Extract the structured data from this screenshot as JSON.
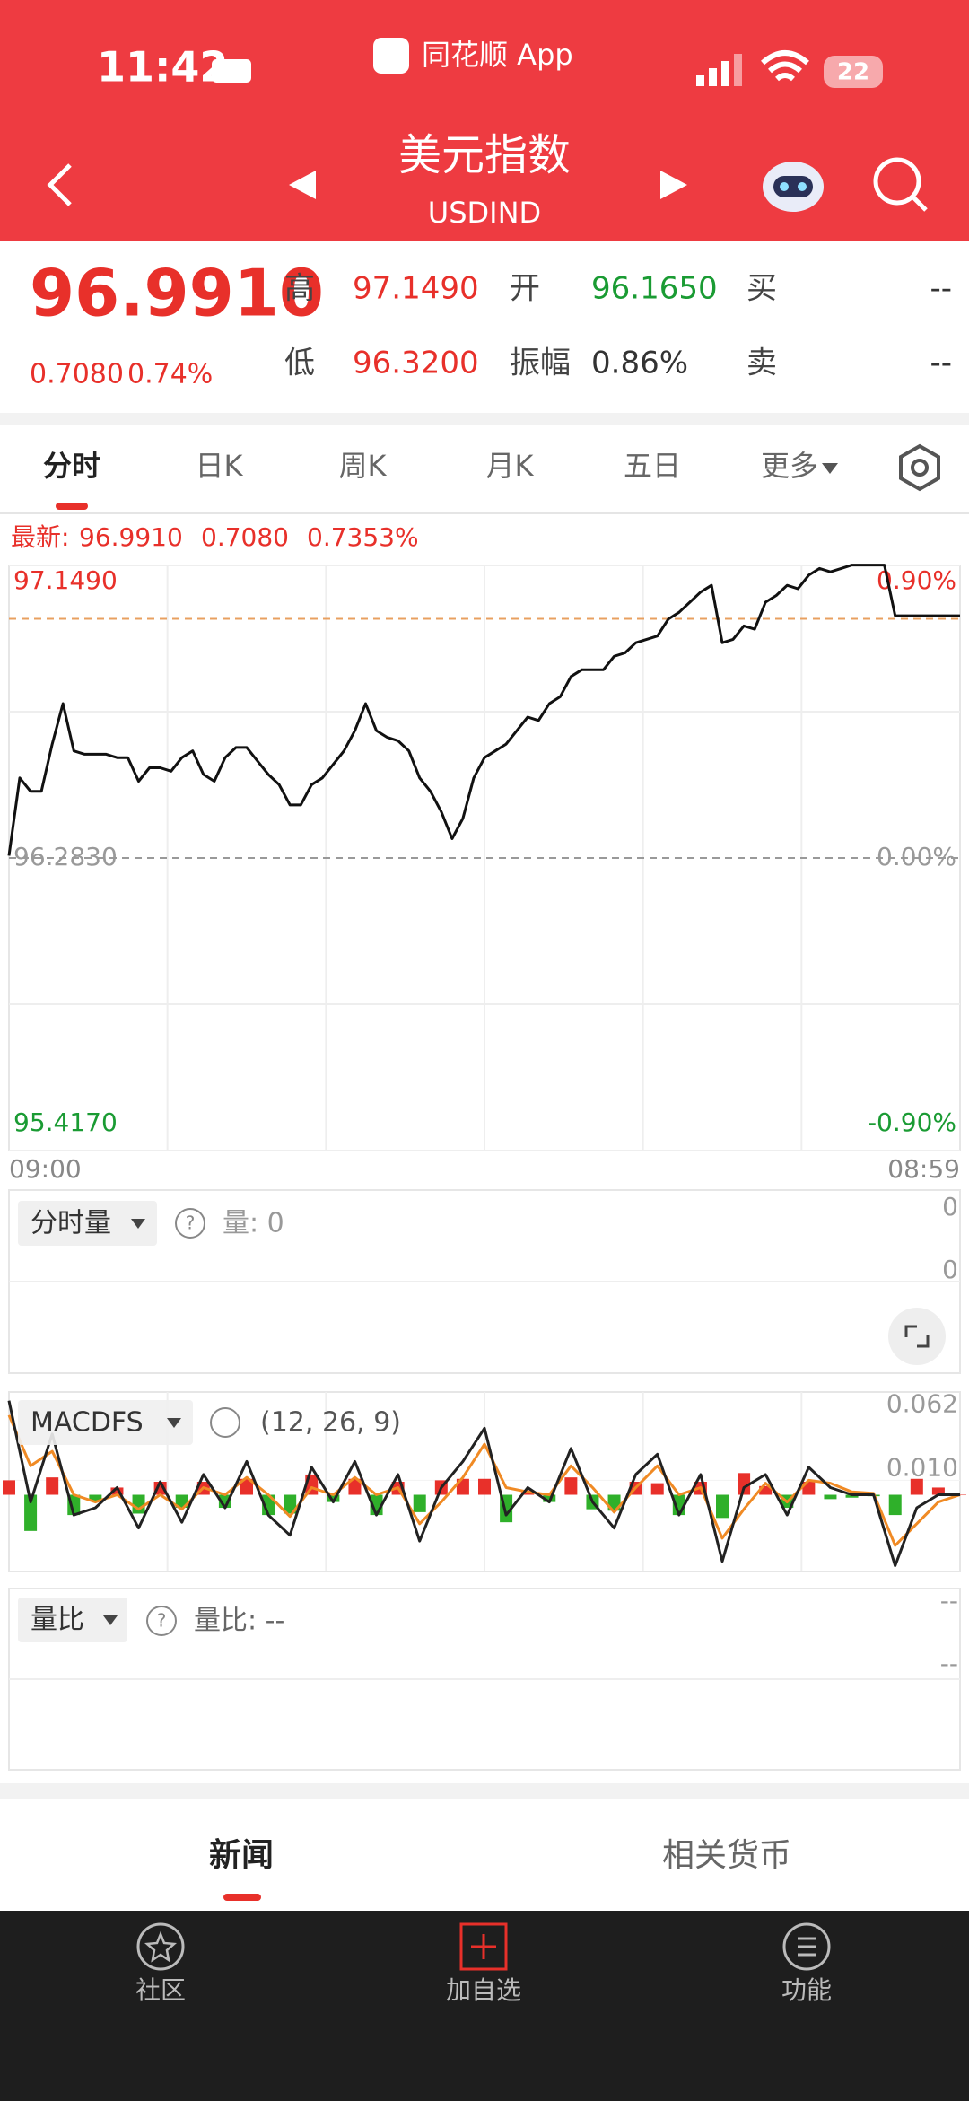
{
  "status_bar": {
    "time": "11:42",
    "app": "同花顺 App",
    "battery": "22"
  },
  "header": {
    "title": "美元指数",
    "code": "USDIND"
  },
  "quote": {
    "price": "96.9910",
    "change": "0.7080",
    "change_pct": "0.74%",
    "fields": [
      {
        "label": "高",
        "value": "97.1490"
      },
      {
        "label": "开",
        "value": "96.1650"
      },
      {
        "label": "买",
        "value": "--"
      },
      {
        "label": "低",
        "value": "96.3200"
      },
      {
        "label": "振幅",
        "value": "0.86%"
      },
      {
        "label": "卖",
        "value": "--"
      }
    ]
  },
  "tabs": [
    "分时",
    "日K",
    "周K",
    "月K",
    "五日",
    "更多"
  ],
  "chart_data": [
    {
      "type": "line",
      "info_label": "最新:",
      "latest": {
        "value": 96.991,
        "label": "96.9910"
      },
      "info_change": "0.7080",
      "info_change_pct": "0.7353%",
      "color": "#111111",
      "latest_color": "#e8a060",
      "grid": true,
      "values": [
        96.29,
        96.52,
        96.48,
        96.48,
        96.62,
        96.74,
        96.6,
        96.59,
        96.59,
        96.59,
        96.58,
        96.58,
        96.51,
        96.55,
        96.55,
        96.54,
        96.58,
        96.6,
        96.53,
        96.51,
        96.58,
        96.61,
        96.61,
        96.57,
        96.53,
        96.5,
        96.44,
        96.44,
        96.5,
        96.52,
        96.56,
        96.6,
        96.66,
        96.74,
        96.66,
        96.64,
        96.63,
        96.6,
        96.52,
        96.48,
        96.42,
        96.34,
        96.4,
        96.52,
        96.58,
        96.6,
        96.62,
        96.66,
        96.7,
        96.69,
        96.74,
        96.76,
        96.82,
        96.84,
        96.84,
        96.84,
        96.88,
        96.89,
        96.92,
        96.93,
        96.94,
        96.99,
        97.01,
        97.04,
        97.07,
        97.09,
        96.92,
        96.93,
        96.97,
        96.96,
        97.04,
        97.06,
        97.09,
        97.08,
        97.12,
        97.14,
        97.13,
        97.14,
        97.15,
        97.15,
        97.15,
        97.15,
        97.0,
        97.0,
        97.0,
        97.0,
        97.0,
        97.0,
        97.0
      ],
      "xlim": [
        0,
        88
      ],
      "xticks": [
        {
          "value": 0,
          "label": "09:00"
        },
        {
          "value": 88,
          "label": "08:59"
        }
      ],
      "ylim": [
        95.417,
        97.149
      ],
      "yticks": [
        {
          "value": 97.149,
          "label": "97.1490"
        },
        {
          "value": 96.283,
          "label": "96.2830"
        },
        {
          "value": 95.417,
          "label": "95.4170"
        }
      ],
      "y2lim": [
        -0.9,
        0.9
      ],
      "y2ticks": [
        {
          "value": 0.9,
          "label": "0.90%"
        },
        {
          "value": 0,
          "label": "0.00%"
        },
        {
          "value": -0.9,
          "label": "-0.90%"
        }
      ]
    },
    {
      "type": "macd",
      "title": "MACDFS",
      "params": "(12, 26, 9)",
      "dif": {
        "color": "#222222",
        "values": [
          0.065,
          -0.005,
          0.042,
          -0.014,
          -0.009,
          0.005,
          -0.023,
          0.009,
          -0.019,
          0.014,
          -0.009,
          0.023,
          -0.014,
          -0.028,
          0.019,
          -0.005,
          0.023,
          -0.014,
          0.014,
          -0.032,
          0.005,
          0.023,
          0.046,
          -0.014,
          0.005,
          -0.005,
          0.032,
          -0.005,
          -0.023,
          0.014,
          0.028,
          -0.014,
          0.014,
          -0.046,
          0.005,
          0.014,
          -0.014,
          0.019,
          0.005,
          0,
          0,
          -0.049,
          -0.009,
          0,
          0
        ]
      },
      "dea": {
        "color": "#f08a24",
        "values": [
          0.055,
          0.02,
          0.03,
          0,
          -0.005,
          0,
          -0.01,
          0,
          -0.01,
          0.005,
          0,
          0.012,
          0,
          -0.015,
          0.005,
          0,
          0.012,
          0,
          0.005,
          -0.02,
          -0.005,
          0.012,
          0.035,
          0.005,
          0.002,
          0,
          0.02,
          0.005,
          -0.012,
          0.005,
          0.02,
          0,
          0.005,
          -0.03,
          -0.01,
          0.008,
          -0.005,
          0.01,
          0.008,
          0.002,
          0.001,
          -0.035,
          -0.02,
          -0.005,
          0
        ]
      },
      "histogram": {
        "up_color": "#e8302a",
        "down_color": "#2fb02a",
        "values": [
          0.01,
          -0.025,
          0.012,
          -0.014,
          -0.004,
          0.005,
          -0.013,
          0.009,
          -0.009,
          0.009,
          -0.009,
          0.011,
          -0.014,
          -0.013,
          0.014,
          -0.005,
          0.011,
          -0.014,
          0.009,
          -0.012,
          0.01,
          0.011,
          0.011,
          -0.019,
          0.003,
          -0.005,
          0.012,
          -0.01,
          -0.011,
          0.009,
          0.008,
          -0.014,
          0.009,
          -0.016,
          0.015,
          0.006,
          -0.009,
          0.009,
          -0.003,
          -0.002,
          -0.001,
          -0.014,
          0.011,
          0.005,
          0
        ]
      },
      "ylim": [
        -0.053,
        0.071
      ],
      "yticks": [
        0.062,
        {
          "value": 0.01,
          "label": "0.010"
        }
      ]
    }
  ],
  "panels": {
    "volume": {
      "title": "分时量",
      "label": "量: 0",
      "ticks": [
        "0",
        "0"
      ]
    },
    "ratio": {
      "title": "量比",
      "label": "量比: --",
      "ticks": [
        "--",
        "--"
      ]
    }
  },
  "news_tabs": [
    "新闻",
    "相关货币"
  ],
  "nav": [
    "社区",
    "加自选",
    "功能"
  ]
}
